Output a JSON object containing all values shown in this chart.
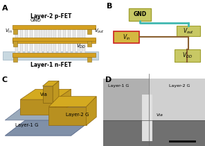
{
  "panel_labels": [
    "A",
    "B",
    "C",
    "D"
  ],
  "panel_A": {
    "bg_color": "#b8d4e8",
    "title_top": "Layer-2 p-FET",
    "title_bottom": "Layer-1 n-FET",
    "label_gnd": "GND",
    "label_vin": "V_in",
    "label_vout": "V_out",
    "label_vdd": "V_DD",
    "gate_color": "#d4a020",
    "contact_color": "#c8a030",
    "stripe_color": "#e8e8e8",
    "platform_color": "#c8d8e8"
  },
  "panel_B": {
    "bg_color": "#5a7a8a",
    "label_gnd": "GND",
    "label_vin": "V_in",
    "label_vout": "V_out",
    "label_vdd": "V_DD",
    "box_gnd_color": "#c8c870",
    "box_vin_color": "#d4b840",
    "box_vout_color": "#c8c870",
    "box_vdd_color": "#c8c870",
    "wire_teal": "#40b8b0",
    "wire_brown": "#8a6030",
    "outline_red": "#cc2020"
  },
  "panel_C": {
    "bg_color": "#d8dce0",
    "layer1_color": "#8090a8",
    "layer2_color": "#c8a020",
    "via_color": "#d4aa28",
    "label_layer1": "Layer-1 G",
    "label_layer2": "Layer-2 G",
    "label_via": "Via"
  },
  "panel_D": {
    "bg_color": "#a0a0a0",
    "label_layer1": "Layer-1 G",
    "label_layer2": "Layer-2 G",
    "label_via": "Via",
    "scalebar_color": "#000000"
  },
  "label_fontsize": 7,
  "panel_label_fontsize": 9
}
